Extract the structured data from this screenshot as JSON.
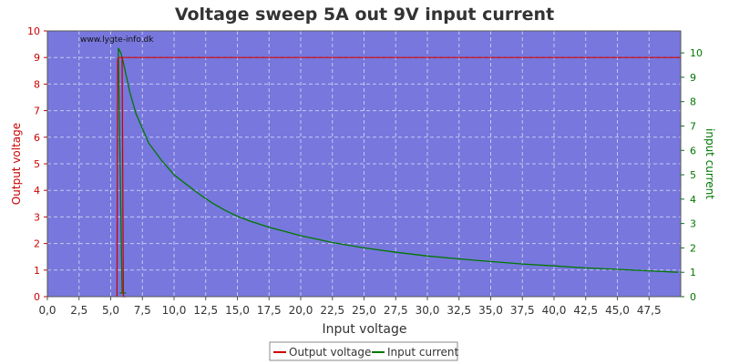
{
  "chart_data": {
    "type": "line",
    "title": "Voltage sweep 5A out 9V input current",
    "watermark": "www.lygte-info.dk",
    "xlabel": "Input voltage",
    "ylabel_left": "Output voltage",
    "ylabel_right": "input current",
    "xlim": [
      0,
      50
    ],
    "ylim_left": [
      0,
      10
    ],
    "ylim_right": [
      0,
      10.9
    ],
    "grid": true,
    "legend_placement": "bottom-center",
    "x_ticks": [
      "0,0",
      "2,5",
      "5,0",
      "7,5",
      "10,0",
      "12,5",
      "15,0",
      "17,5",
      "20,0",
      "22,5",
      "25,0",
      "27,5",
      "30,0",
      "32,5",
      "35,0",
      "37,5",
      "40,0",
      "42,5",
      "45,0",
      "47,5"
    ],
    "y_left_ticks": [
      "0",
      "1",
      "2",
      "3",
      "4",
      "5",
      "6",
      "7",
      "8",
      "9",
      "10"
    ],
    "y_right_ticks": [
      "0",
      "1",
      "2",
      "3",
      "4",
      "5",
      "6",
      "7",
      "8",
      "9",
      "10"
    ],
    "colors": {
      "plot_bg": "#7777dd",
      "grid": "#c8c8f0",
      "output_voltage": "#cc0000",
      "input_current": "#007700",
      "left_axis": "#cc0000",
      "right_axis": "#007700"
    },
    "series": [
      {
        "name": "Output voltage",
        "axis": "left",
        "points": [
          [
            5.5,
            0
          ],
          [
            5.55,
            8.9
          ],
          [
            5.6,
            9.0
          ],
          [
            50,
            9.0
          ]
        ],
        "dropout_segment": [
          [
            5.9,
            9.0
          ],
          [
            6.0,
            0
          ],
          [
            6.2,
            0
          ]
        ]
      },
      {
        "name": "Input current",
        "axis": "right",
        "points": [
          [
            5.7,
            0.15
          ],
          [
            6.2,
            0.15
          ],
          [
            5.9,
            0.15
          ],
          [
            5.6,
            10.2
          ],
          [
            5.8,
            10.0
          ],
          [
            6.0,
            9.6
          ],
          [
            6.5,
            8.4
          ],
          [
            7.0,
            7.5
          ],
          [
            7.5,
            6.9
          ],
          [
            8.0,
            6.3
          ],
          [
            9.0,
            5.6
          ],
          [
            10.0,
            5.0
          ],
          [
            11.0,
            4.6
          ],
          [
            12.0,
            4.2
          ],
          [
            13.0,
            3.85
          ],
          [
            14.0,
            3.55
          ],
          [
            15.0,
            3.3
          ],
          [
            16.0,
            3.1
          ],
          [
            17.5,
            2.85
          ],
          [
            20.0,
            2.5
          ],
          [
            22.5,
            2.22
          ],
          [
            25.0,
            2.0
          ],
          [
            27.5,
            1.82
          ],
          [
            30.0,
            1.67
          ],
          [
            32.5,
            1.55
          ],
          [
            35.0,
            1.44
          ],
          [
            37.5,
            1.34
          ],
          [
            40.0,
            1.26
          ],
          [
            42.5,
            1.18
          ],
          [
            45.0,
            1.12
          ],
          [
            47.5,
            1.06
          ],
          [
            49.8,
            1.0
          ]
        ]
      }
    ]
  }
}
